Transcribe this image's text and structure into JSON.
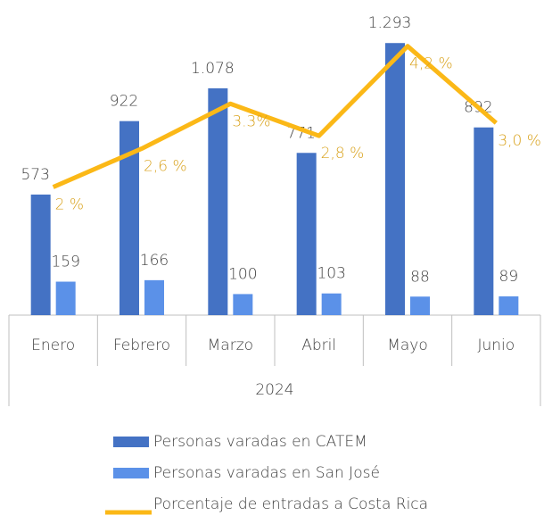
{
  "chart_data": {
    "type": "bar",
    "categories": [
      "Enero",
      "Febrero",
      "Marzo",
      "Abril",
      "Mayo",
      "Junio"
    ],
    "xlabel": "2024",
    "series": [
      {
        "name": "Personas varadas en CATEM",
        "color": "#4472c4",
        "values": [
          573,
          922,
          1078,
          771,
          1293,
          892
        ],
        "value_labels": [
          "573",
          "922",
          "1.078",
          "771",
          "1.293",
          "892"
        ]
      },
      {
        "name": "Personas varadas en San José",
        "color": "#5b91e8",
        "values": [
          159,
          166,
          100,
          103,
          88,
          89
        ]
      },
      {
        "name": "Porcentaje de entradas a Costa Rica",
        "type": "line",
        "axis": "y2",
        "color": "#fbb817",
        "label_color": "#d9a21c",
        "values": [
          2,
          2.6,
          3.3,
          2.8,
          4.2,
          3.0
        ],
        "value_labels": [
          "2 %",
          "2,6 %",
          "3.3%",
          "2,8 %",
          "4,2 %",
          "3,0 %"
        ]
      }
    ],
    "ylim": [
      0,
      1400
    ],
    "y2lim": [
      0,
      4.6
    ]
  }
}
